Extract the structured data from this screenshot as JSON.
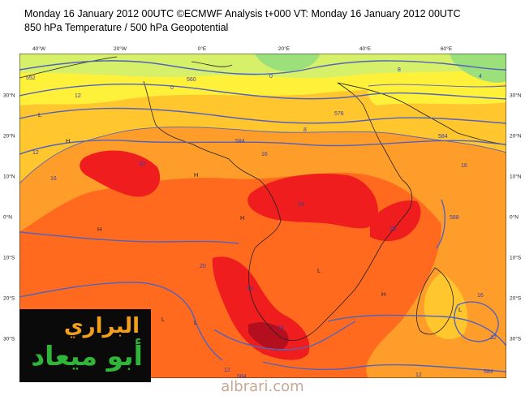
{
  "header": {
    "line1": "Monday 16 January 2012 00UTC ©ECMWF Analysis t+000 VT: Monday 16 January 2012 00UTC",
    "line2": "850 hPa Temperature / 500 hPa Geopotential"
  },
  "lon_labels": [
    "40°W",
    "20°W",
    "0°E",
    "20°E",
    "40°E",
    "60°E"
  ],
  "lat_labels": [
    "30°N",
    "20°N",
    "10°N",
    "0°N",
    "10°S",
    "20°S",
    "30°S"
  ],
  "temperature_labels": [
    "0",
    "4",
    "8",
    "12",
    "16",
    "20",
    "24"
  ],
  "geopotential_labels": [
    "552",
    "560",
    "568",
    "576",
    "584",
    "588"
  ],
  "watermark": {
    "logo_line1": "البراري",
    "logo_line2": "أبو ميعاد",
    "site": "albrari.com"
  },
  "colors": {
    "cold_green": "#9be07a",
    "yellow_green": "#d6f06a",
    "yellow": "#fff03a",
    "light_orange": "#ffc62e",
    "orange": "#ff9d2a",
    "dark_orange": "#ff6a1e",
    "red": "#ef1d1d",
    "dark_red": "#b40f1e",
    "contour_blue": "#5463b8",
    "coast": "#222222"
  }
}
